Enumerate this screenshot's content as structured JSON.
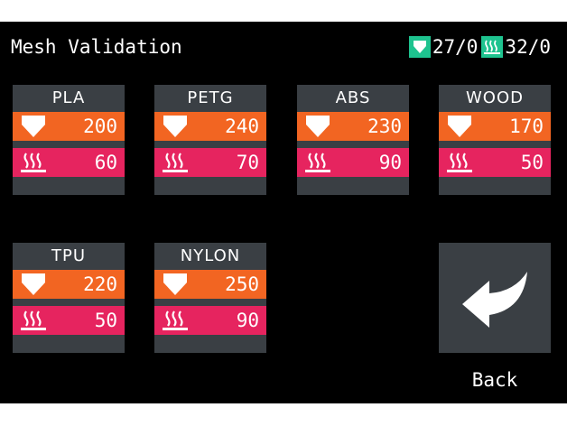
{
  "header": {
    "title": "Mesh Validation",
    "nozzle_status": "27/0",
    "bed_status": "32/0",
    "nozzle_icon": "nozzle-icon",
    "bed_icon": "heatbed-icon",
    "status_icon_color": "#1ec38f"
  },
  "materials": [
    {
      "name": "PLA",
      "nozzle": "200",
      "bed": "60"
    },
    {
      "name": "PETG",
      "nozzle": "240",
      "bed": "70"
    },
    {
      "name": "ABS",
      "nozzle": "230",
      "bed": "90"
    },
    {
      "name": "WOOD",
      "nozzle": "170",
      "bed": "50"
    },
    {
      "name": "TPU",
      "nozzle": "220",
      "bed": "50"
    },
    {
      "name": "NYLON",
      "nozzle": "250",
      "bed": "90"
    }
  ],
  "back": {
    "label": "Back",
    "icon": "back-arrow-icon"
  },
  "colors": {
    "background": "#000000",
    "card": "#3a3f44",
    "nozzle_row": "#f26522",
    "bed_row": "#e6245f",
    "accent": "#1ec38f"
  }
}
